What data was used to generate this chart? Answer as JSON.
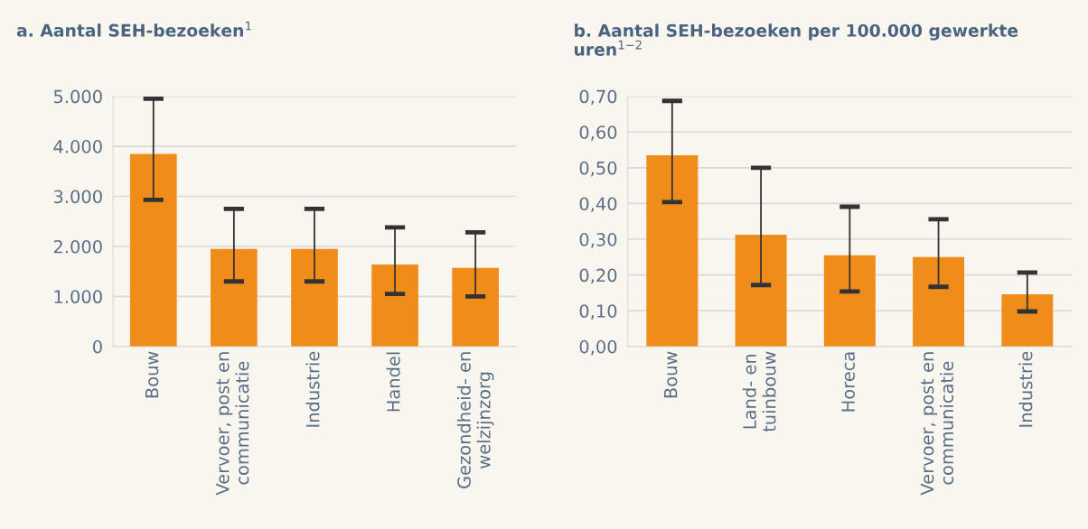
{
  "chart_data": [
    {
      "type": "bar",
      "title": "a. Aantal SEH-bezoeken$^{1}$",
      "categories": [
        "Bouw",
        "Vervoer, post en\ncommunicatie",
        "Industrie",
        "Handel",
        "Gezondheid- en\nwelzijnzorg"
      ],
      "values": [
        3850,
        1950,
        1950,
        1640,
        1570
      ],
      "color": "#f08c1a",
      "errors": [
        [
          2930,
          4950
        ],
        [
          1300,
          2750
        ],
        [
          1300,
          2750
        ],
        [
          1050,
          2380
        ],
        [
          1000,
          2280
        ]
      ],
      "ylim": [
        0,
        5000
      ],
      "yticks": [
        {
          "value": 0,
          "label": "0"
        },
        {
          "value": 1000,
          "label": "1.000"
        },
        {
          "value": 2000,
          "label": "2.000"
        },
        {
          "value": 3000,
          "label": "3.000"
        },
        {
          "value": 4000,
          "label": "4.000"
        },
        {
          "value": 5000,
          "label": "5.000"
        }
      ],
      "grid": "y"
    },
    {
      "type": "bar",
      "title": "b. Aantal SEH-bezoeken per 100.000 gewerkte uren$^{1−2}$",
      "categories": [
        "Bouw",
        "Land- en\ntuinbouw",
        "Horeca",
        "Vervoer, post en\ncommunicatie",
        "Industrie"
      ],
      "values": [
        0.535,
        0.313,
        0.255,
        0.25,
        0.146
      ],
      "color": "#f08c1a",
      "errors": [
        [
          0.404,
          0.687
        ],
        [
          0.172,
          0.5
        ],
        [
          0.154,
          0.391
        ],
        [
          0.167,
          0.356
        ],
        [
          0.098,
          0.207
        ]
      ],
      "ylim": [
        0,
        0.7
      ],
      "yticks": [
        {
          "value": 0,
          "label": "0,00"
        },
        {
          "value": 0.1,
          "label": "0,10"
        },
        {
          "value": 0.2,
          "label": "0,20"
        },
        {
          "value": 0.3,
          "label": "0,30"
        },
        {
          "value": 0.4,
          "label": "0,40"
        },
        {
          "value": 0.5,
          "label": "0,50"
        },
        {
          "value": 0.6,
          "label": "0,60"
        },
        {
          "value": 0.7,
          "label": "0,70"
        }
      ],
      "grid": "y"
    }
  ]
}
